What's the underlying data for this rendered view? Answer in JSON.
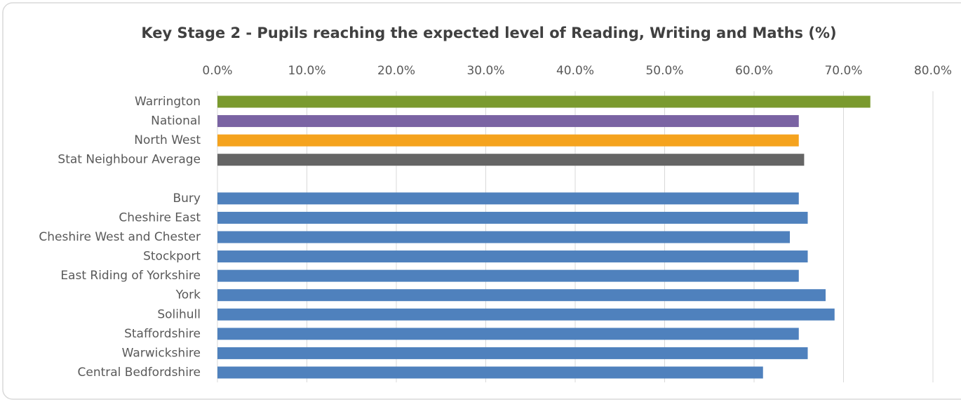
{
  "chart_data": {
    "type": "hbar",
    "title": "Key Stage 2 - Pupils reaching the expected level of Reading, Writing and Maths (%)",
    "categories": [
      "Warrington",
      "National",
      "North West",
      "Stat Neighbour Average",
      null,
      "Bury",
      "Cheshire East",
      "Cheshire West and Chester",
      "Stockport",
      "East Riding of Yorkshire",
      "York",
      "Solihull",
      "Staffordshire",
      "Warwickshire",
      "Central Bedfordshire"
    ],
    "values": [
      73,
      65,
      65,
      65.6,
      null,
      65,
      66,
      64,
      66,
      65,
      68,
      69,
      65,
      66,
      61
    ],
    "colors": [
      "#7a9a2e",
      "#7a63a3",
      "#f5a31e",
      "#656565",
      null,
      "#4f81bd",
      "#4f81bd",
      "#4f81bd",
      "#4f81bd",
      "#4f81bd",
      "#4f81bd",
      "#4f81bd",
      "#4f81bd",
      "#4f81bd",
      "#4f81bd"
    ],
    "xlim": [
      0,
      80
    ],
    "xticks": [
      {
        "value": 0,
        "label": "0.0%"
      },
      {
        "value": 10,
        "label": "10.0%"
      },
      {
        "value": 20,
        "label": "20.0%"
      },
      {
        "value": 30,
        "label": "30.0%"
      },
      {
        "value": 40,
        "label": "40.0%"
      },
      {
        "value": 50,
        "label": "50.0%"
      },
      {
        "value": 60,
        "label": "60.0%"
      },
      {
        "value": 70,
        "label": "70.0%"
      },
      {
        "value": 80,
        "label": "80.0%"
      }
    ],
    "grid": true
  }
}
